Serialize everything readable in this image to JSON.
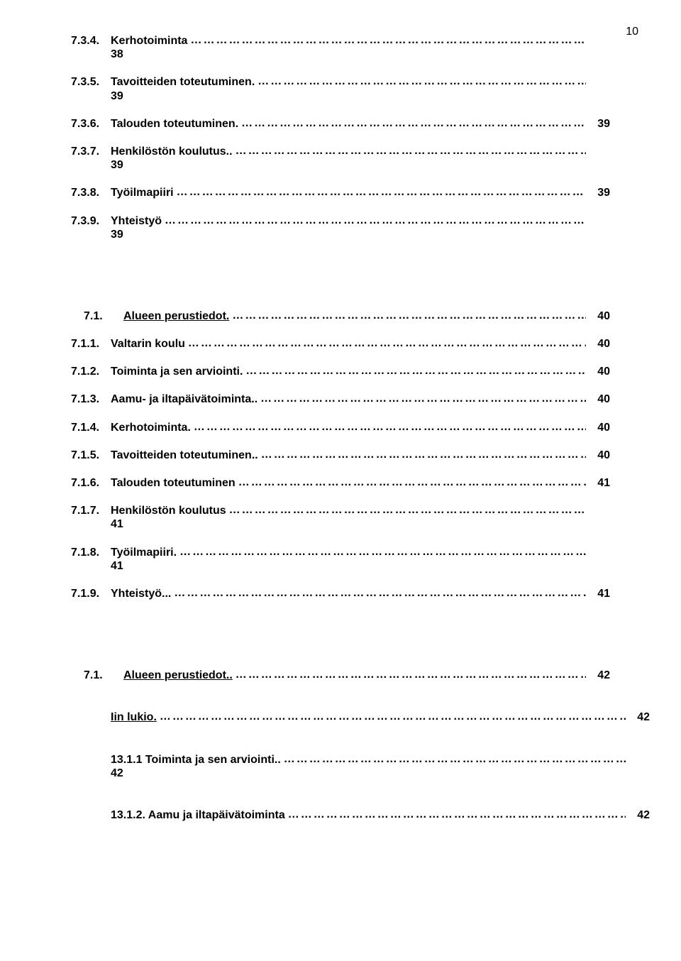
{
  "pageNumber": "10",
  "entries": [
    {
      "num": "7.3.4.",
      "label": "Kerhotoiminta",
      "page": "",
      "continuation": "38",
      "offset": false,
      "underline": false
    },
    {
      "num": "7.3.5.",
      "label": "Tavoitteiden toteutuminen.",
      "page": "",
      "continuation": "39",
      "offset": false,
      "underline": false
    },
    {
      "num": "7.3.6.",
      "label": "Talouden toteutuminen.",
      "page": "39",
      "continuation": "",
      "offset": false,
      "underline": false
    },
    {
      "num": "7.3.7.",
      "label": "Henkilöstön koulutus..",
      "page": "",
      "continuation": "39",
      "offset": false,
      "underline": false
    },
    {
      "num": "7.3.8.",
      "label": "Työilmapiiri",
      "page": "39",
      "continuation": "",
      "offset": false,
      "underline": false
    },
    {
      "num": "7.3.9.",
      "label": "Yhteistyö",
      "page": "",
      "continuation": "39",
      "offset": false,
      "underline": false
    }
  ],
  "entries2": [
    {
      "num": "7.1.",
      "label": "Alueen perustiedot.",
      "page": "40",
      "continuation": "",
      "offset": true,
      "underline": true
    },
    {
      "num": "7.1.1.",
      "label": "Valtarin koulu",
      "page": "40",
      "continuation": "",
      "offset": false,
      "underline": false
    },
    {
      "num": "7.1.2.",
      "label": "Toiminta ja sen arviointi.",
      "page": "40",
      "continuation": "",
      "offset": false,
      "underline": false
    },
    {
      "num": "7.1.3.",
      "label": "Aamu- ja iltapäivätoiminta..",
      "page": "40",
      "continuation": "",
      "offset": false,
      "underline": false
    },
    {
      "num": "7.1.4.",
      "label": "Kerhotoiminta.",
      "page": "40",
      "continuation": "",
      "offset": false,
      "underline": false
    },
    {
      "num": "7.1.5.",
      "label": "Tavoitteiden toteutuminen..",
      "page": "40",
      "continuation": "",
      "offset": false,
      "underline": false
    },
    {
      "num": "7.1.6.",
      "label": "Talouden toteutuminen",
      "page": "41",
      "continuation": "",
      "offset": false,
      "underline": false
    },
    {
      "num": "7.1.7.",
      "label": "Henkilöstön koulutus",
      "page": "",
      "continuation": "41",
      "offset": false,
      "underline": false
    },
    {
      "num": "7.1.8.",
      "label": "Työilmapiiri.",
      "page": "",
      "continuation": "41",
      "offset": false,
      "underline": false
    },
    {
      "num": "7.1.9.",
      "label": "Yhteistyö...",
      "page": "41",
      "continuation": "",
      "offset": false,
      "underline": false
    }
  ],
  "entries3": [
    {
      "num": "7.1.",
      "label": "Alueen perustiedot..",
      "page": "42",
      "continuation": "",
      "offset": true,
      "underline": true,
      "indent": false
    },
    {
      "num": "",
      "label": "Iin lukio.",
      "page": "42",
      "continuation": "",
      "offset": false,
      "underline": true,
      "indent": true
    },
    {
      "num": "",
      "label": "13.1.1 Toiminta ja sen arviointi..",
      "page": "",
      "continuation": "42",
      "offset": false,
      "underline": false,
      "indent": true
    },
    {
      "num": "",
      "label": "13.1.2. Aamu ja iltapäivätoiminta",
      "page": "42",
      "continuation": "",
      "offset": false,
      "underline": false,
      "indent": true
    }
  ]
}
